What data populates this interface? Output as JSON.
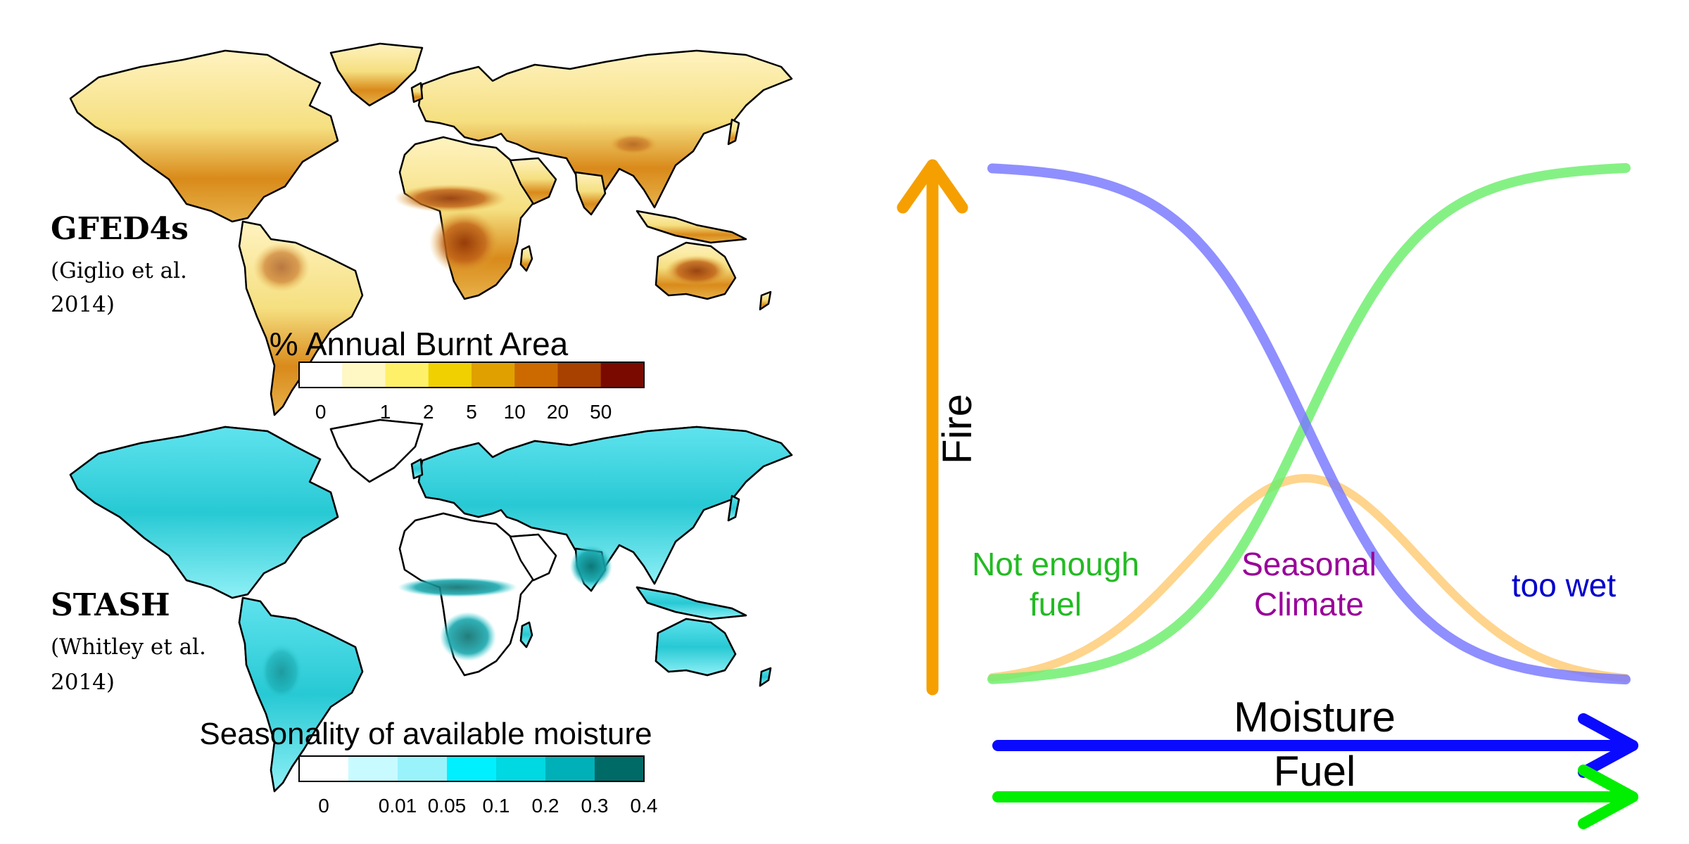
{
  "maps": {
    "top": {
      "dataset": "GFED4s",
      "citation_line1": "(Giglio et al.",
      "citation_line2": "2014)",
      "legend_title": "% Annual Burnt Area",
      "legend_ticks": [
        "0",
        "1",
        "2",
        "5",
        "10",
        "20",
        "50"
      ],
      "legend_colors": [
        "#ffffff",
        "#fff7c4",
        "#fff06a",
        "#f0d000",
        "#e0a000",
        "#cc6a00",
        "#a84000",
        "#7a0a00"
      ]
    },
    "bottom": {
      "dataset": "STASH",
      "citation_line1": "(Whitley et al.",
      "citation_line2": "2014)",
      "legend_title": "Seasonality of available moisture",
      "legend_ticks": [
        "0",
        "0.01",
        "0.05",
        "0.1",
        "0.2",
        "0.3",
        "0.4"
      ],
      "legend_colors": [
        "#ffffff",
        "#c8fbff",
        "#9af3fa",
        "#00f0ff",
        "#00d8e2",
        "#00b0b8",
        "#006a66"
      ]
    }
  },
  "diagram": {
    "fire_label": "Fire",
    "moisture_label": "Moisture",
    "fuel_label": "Fuel",
    "not_enough_fuel_line1": "Not enough",
    "not_enough_fuel_line2": "fuel",
    "seasonal_climate_line1": "Seasonal",
    "seasonal_climate_line2": "Climate",
    "too_wet": "too wet",
    "colors": {
      "fire_axis": "#f5a000",
      "moisture_axis": "#0a0aff",
      "fuel_axis": "#00ee00",
      "moisture_curve": "#7b7bff",
      "fuel_curve": "#70ef70",
      "climate_curve": "#ffcf80",
      "not_enough_fuel_text": "#22bb22",
      "seasonal_climate_text": "#990099",
      "too_wet_text": "#0000cc"
    }
  }
}
